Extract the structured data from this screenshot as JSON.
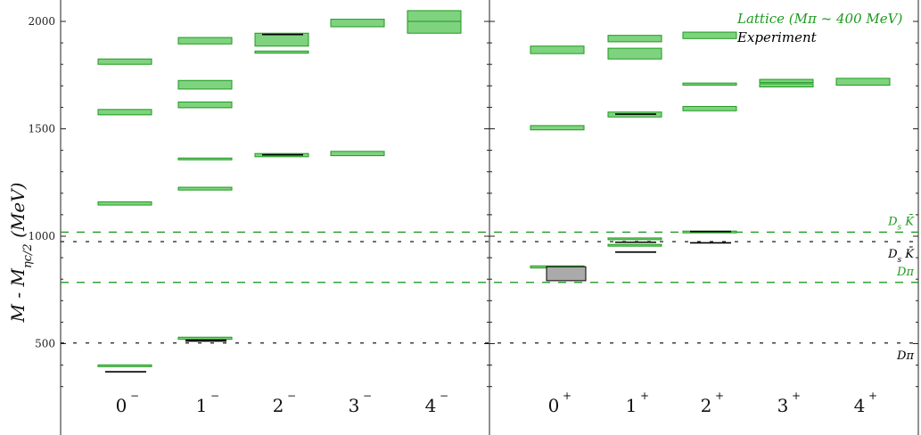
{
  "chart_data": {
    "type": "energy-level",
    "ylabel": "M - M_ηc/2  (MeV)",
    "ylim": [
      270,
      2060
    ],
    "yticks": [
      500,
      1000,
      1500,
      2000
    ],
    "colors": {
      "lattice": "#1e9a1e",
      "lattice_fill": "#7fd37f",
      "experiment": "#000000",
      "experiment_box": "#aaaaaa"
    },
    "legend": {
      "position": "top-right",
      "lattice": "Lattice (Mπ ~ 400 MeV)",
      "experiment": "Experiment"
    },
    "panels": [
      {
        "categories": [
          {
            "label": "0",
            "parity": "−"
          },
          {
            "label": "1",
            "parity": "−"
          },
          {
            "label": "2",
            "parity": "−"
          },
          {
            "label": "3",
            "parity": "−"
          },
          {
            "label": "4",
            "parity": "−"
          }
        ],
        "lattice": [
          {
            "category": 0,
            "lo": 395,
            "hi": 401
          },
          {
            "category": 0,
            "lo": 1145,
            "hi": 1160
          },
          {
            "category": 0,
            "lo": 1565,
            "hi": 1590
          },
          {
            "category": 0,
            "lo": 1800,
            "hi": 1825
          },
          {
            "category": 1,
            "lo": 520,
            "hi": 530
          },
          {
            "category": 1,
            "lo": 1215,
            "hi": 1228
          },
          {
            "category": 1,
            "lo": 1356,
            "hi": 1364
          },
          {
            "category": 1,
            "lo": 1598,
            "hi": 1625
          },
          {
            "category": 1,
            "lo": 1685,
            "hi": 1725
          },
          {
            "category": 1,
            "lo": 1895,
            "hi": 1925
          },
          {
            "category": 2,
            "lo": 1370,
            "hi": 1385
          },
          {
            "category": 2,
            "lo": 1852,
            "hi": 1862
          },
          {
            "category": 2,
            "lo": 1885,
            "hi": 1945
          },
          {
            "category": 3,
            "lo": 1375,
            "hi": 1395
          },
          {
            "category": 3,
            "lo": 1975,
            "hi": 2010
          },
          {
            "category": 4,
            "lo": 1945,
            "hi": 2000
          },
          {
            "category": 4,
            "lo": 2000,
            "hi": 2050
          }
        ],
        "experiment": [
          {
            "category": 0,
            "value": 369
          },
          {
            "category": 1,
            "value": 512
          },
          {
            "category": 1,
            "value": 516
          },
          {
            "category": 2,
            "value": 1379
          },
          {
            "category": 2,
            "value": 1939
          }
        ]
      },
      {
        "categories": [
          {
            "label": "0",
            "parity": "+"
          },
          {
            "label": "1",
            "parity": "+"
          },
          {
            "label": "2",
            "parity": "+"
          },
          {
            "label": "3",
            "parity": "+"
          },
          {
            "label": "4",
            "parity": "+"
          }
        ],
        "lattice": [
          {
            "category": 0,
            "lo": 852,
            "hi": 862
          },
          {
            "category": 0,
            "lo": 1495,
            "hi": 1515
          },
          {
            "category": 0,
            "lo": 1850,
            "hi": 1885
          },
          {
            "category": 1,
            "lo": 955,
            "hi": 962
          },
          {
            "category": 1,
            "lo": 986,
            "hi": 992
          },
          {
            "category": 1,
            "lo": 1555,
            "hi": 1578
          },
          {
            "category": 1,
            "lo": 1825,
            "hi": 1875
          },
          {
            "category": 1,
            "lo": 1905,
            "hi": 1935
          },
          {
            "category": 2,
            "lo": 1018,
            "hi": 1024
          },
          {
            "category": 2,
            "lo": 1584,
            "hi": 1604
          },
          {
            "category": 2,
            "lo": 1703,
            "hi": 1713
          },
          {
            "category": 2,
            "lo": 1920,
            "hi": 1950
          },
          {
            "category": 3,
            "lo": 1695,
            "hi": 1710
          },
          {
            "category": 3,
            "lo": 1715,
            "hi": 1730
          },
          {
            "category": 4,
            "lo": 1703,
            "hi": 1735
          }
        ],
        "experiment": [
          {
            "category": 1,
            "value": 926
          },
          {
            "category": 1,
            "value": 972
          },
          {
            "category": 1,
            "value": 1568
          },
          {
            "category": 2,
            "value": 969
          },
          {
            "category": 2,
            "value": 1022
          }
        ],
        "experiment_boxes": [
          {
            "category": 0,
            "lo": 793,
            "hi": 858
          }
        ]
      }
    ],
    "thresholds": [
      {
        "value": 1019,
        "kind": "lattice",
        "label": "D_s K̄"
      },
      {
        "value": 975,
        "kind": "experiment",
        "label": "D_s K̄"
      },
      {
        "value": 785,
        "kind": "lattice",
        "label": "Dπ"
      },
      {
        "value": 503,
        "kind": "experiment",
        "label": "Dπ"
      }
    ]
  }
}
